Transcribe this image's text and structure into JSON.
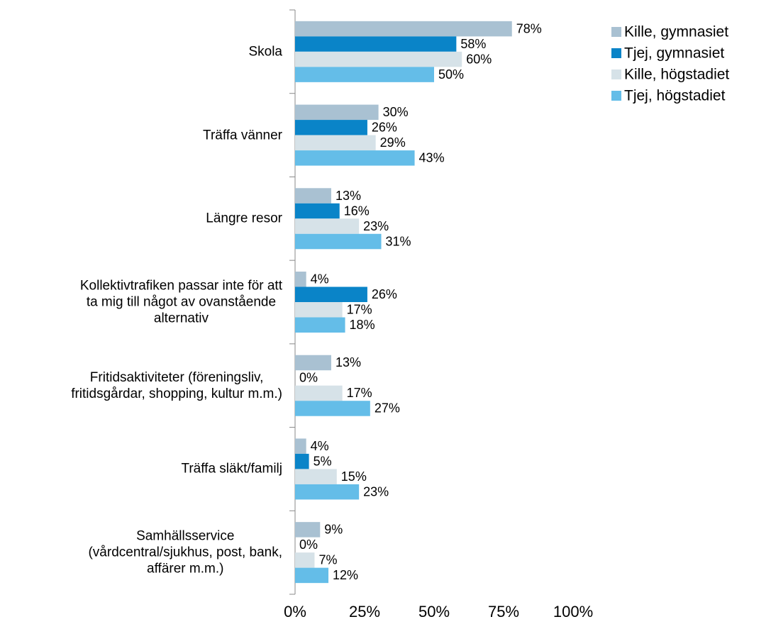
{
  "chart_data": {
    "type": "barh",
    "categories": [
      "Skola",
      "Träffa vänner",
      "Längre resor",
      "Kollektivtrafiken passar inte för att\nta mig till något av ovanstående\nalternativ",
      "Fritidsaktiviteter (föreningsliv,\nfritidsgårdar, shopping, kultur m.m.)",
      "Träffa släkt/familj",
      "Samhällsservice\n(vårdcentral/sjukhus, post, bank,\naffärer m.m.)"
    ],
    "series": [
      {
        "name": "Kille, gymnasiet",
        "color": "#a9c1d2",
        "values": [
          78,
          30,
          13,
          4,
          13,
          4,
          9
        ],
        "value_labels": [
          "78%",
          "30%",
          "13%",
          "4%",
          "13%",
          "4%",
          "9%"
        ]
      },
      {
        "name": "Tjej, gymnasiet",
        "color": "#0a84c8",
        "values": [
          58,
          26,
          16,
          26,
          0,
          5,
          0
        ],
        "value_labels": [
          "58%",
          "26%",
          "16%",
          "26%",
          "0%",
          "5%",
          "0%"
        ]
      },
      {
        "name": "Kille, högstadiet",
        "color": "#d6e2e8",
        "values": [
          60,
          29,
          23,
          17,
          17,
          15,
          7
        ],
        "value_labels": [
          "60%",
          "29%",
          "23%",
          "17%",
          "17%",
          "15%",
          "7%"
        ]
      },
      {
        "name": "Tjej, högstadiet",
        "color": "#64bde8",
        "values": [
          50,
          43,
          31,
          18,
          27,
          23,
          12
        ],
        "value_labels": [
          "50%",
          "43%",
          "31%",
          "18%",
          "27%",
          "23%",
          "12%"
        ]
      }
    ],
    "xlim": [
      0,
      100
    ],
    "xticks": [
      {
        "value": 0,
        "label": "0%"
      },
      {
        "value": 25,
        "label": "25%"
      },
      {
        "value": 50,
        "label": "50%"
      },
      {
        "value": 75,
        "label": "75%"
      },
      {
        "value": 100,
        "label": "100%"
      }
    ],
    "legend": "top-right"
  }
}
